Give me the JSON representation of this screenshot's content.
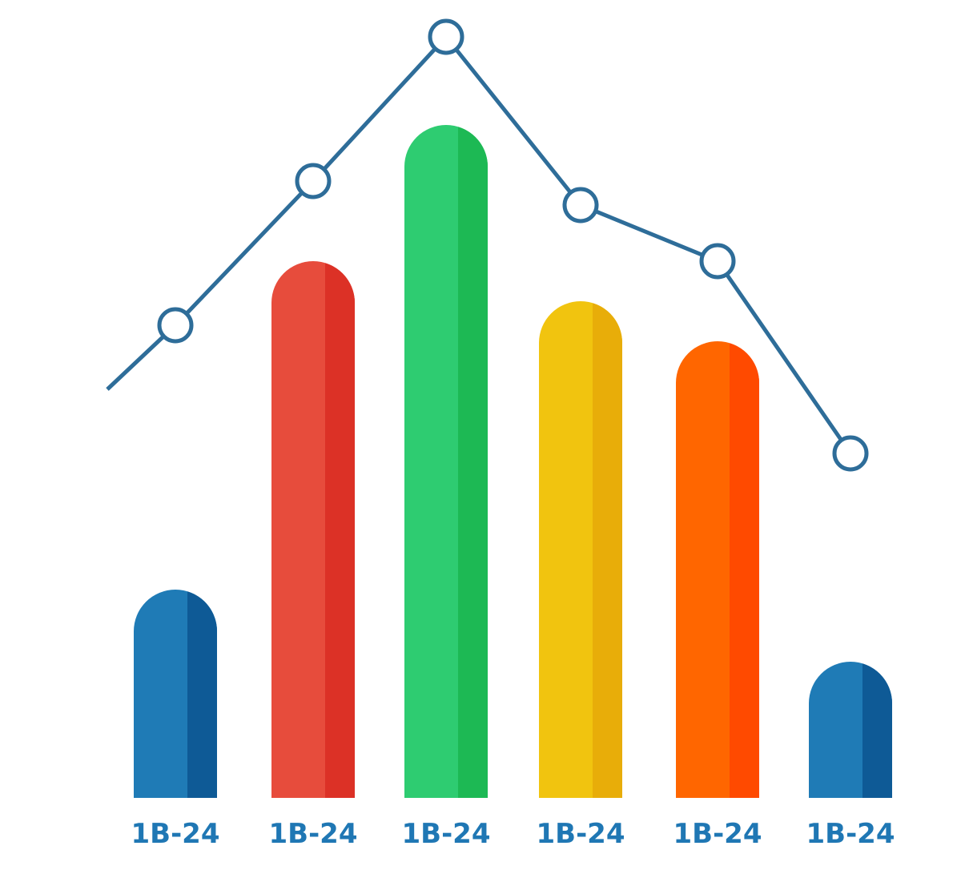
{
  "chart_data": {
    "type": "bar",
    "categories": [
      "1B-24",
      "1B-24",
      "1B-24",
      "1B-24",
      "1B-24",
      "1B-24"
    ],
    "values": [
      26,
      67,
      84,
      62,
      57,
      17
    ],
    "ylim": [
      0,
      100
    ],
    "grid": false,
    "bar_colors": [
      {
        "light": "#1f7bb6",
        "dark": "#0e5a96"
      },
      {
        "light": "#e74c3c",
        "dark": "#dc3126"
      },
      {
        "light": "#2ecc71",
        "dark": "#1db954"
      },
      {
        "light": "#f1c40f",
        "dark": "#e8ad09"
      },
      {
        "light": "#ff6600",
        "dark": "#ff4a00"
      },
      {
        "light": "#1f7bb6",
        "dark": "#0e5a96"
      }
    ],
    "line_series": {
      "values": [
        59,
        77,
        95,
        74,
        67,
        43
      ],
      "start_value": 51,
      "color": "#2e6d99"
    },
    "label_color": "#1f77b4"
  }
}
